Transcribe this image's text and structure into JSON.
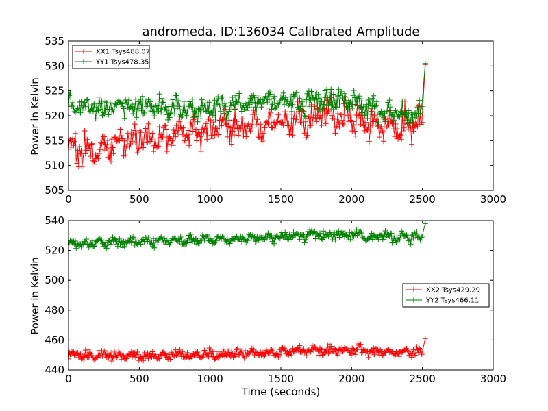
{
  "chart_data": [
    {
      "type": "line",
      "title": "andromeda, ID:136034 Calibrated Amplitude",
      "xlabel": "",
      "ylabel": "Power in Kelvin",
      "xlim": [
        0,
        3000
      ],
      "ylim": [
        505,
        535
      ],
      "xticks": [
        "0",
        "500",
        "1000",
        "1500",
        "2000",
        "2500",
        "3000"
      ],
      "yticks": [
        "505",
        "510",
        "515",
        "520",
        "525",
        "530",
        "535"
      ],
      "legend_position": "top-left",
      "grid": false,
      "marker": "plus",
      "series": [
        {
          "name": "XX1 Tsys488.07",
          "color": "#ff0000",
          "trend": {
            "x": [
              0,
              100,
              200,
              300,
              400,
              500,
              600,
              700,
              800,
              900,
              1000,
              1100,
              1200,
              1300,
              1400,
              1500,
              1600,
              1700,
              1800,
              1900,
              2000,
              2100,
              2200,
              2300,
              2400,
              2500
            ],
            "y": [
              514,
              513,
              513.5,
              514,
              514.5,
              515,
              515.5,
              515.5,
              516,
              516.5,
              517,
              517.5,
              518,
              518,
              518.5,
              518.5,
              519,
              519.5,
              520,
              520,
              519.5,
              519,
              518.5,
              518,
              518,
              518
            ]
          },
          "spread": 2.5,
          "end_spike": [
            2520,
            530.3
          ]
        },
        {
          "name": "YY1 Tsys478.35",
          "color": "#008000",
          "trend": {
            "x": [
              0,
              100,
              200,
              300,
              400,
              500,
              600,
              700,
              800,
              900,
              1000,
              1100,
              1200,
              1300,
              1400,
              1500,
              1600,
              1700,
              1800,
              1900,
              2000,
              2100,
              2200,
              2300,
              2400,
              2500
            ],
            "y": [
              522.5,
              522,
              521.5,
              521.5,
              522,
              522,
              522,
              521.5,
              521.5,
              521,
              521.5,
              522,
              522,
              522.5,
              523,
              523,
              523,
              523,
              523,
              523.5,
              523,
              522,
              521,
              520.5,
              520.5,
              521
            ]
          },
          "spread": 1.8,
          "end_spike": [
            2520,
            530.5
          ]
        }
      ]
    },
    {
      "type": "line",
      "title": "",
      "xlabel": "Time (seconds)",
      "ylabel": "Power in Kelvin",
      "xlim": [
        0,
        3000
      ],
      "ylim": [
        440,
        540
      ],
      "xticks": [
        "0",
        "500",
        "1000",
        "1500",
        "2000",
        "2500",
        "3000"
      ],
      "yticks": [
        "440",
        "460",
        "480",
        "500",
        "520",
        "540"
      ],
      "legend_position": "center-right",
      "grid": false,
      "marker": "plus",
      "series": [
        {
          "name": "XX2 Tsys429.29",
          "color": "#ff0000",
          "trend": {
            "x": [
              0,
              250,
              500,
              750,
              1000,
              1250,
              1500,
              1750,
              2000,
              2250,
              2500
            ],
            "y": [
              450,
              449.5,
              449.5,
              450,
              450.5,
              451,
              452,
              453.5,
              453,
              452,
              452
            ]
          },
          "spread": 2.5,
          "end_spike": [
            2520,
            461
          ]
        },
        {
          "name": "YY2 Tsys466.11",
          "color": "#008000",
          "trend": {
            "x": [
              0,
              250,
              500,
              750,
              1000,
              1250,
              1500,
              1750,
              2000,
              2250,
              2500
            ],
            "y": [
              525,
              525,
              526,
              526.5,
              527,
              528,
              529,
              530.5,
              530.5,
              529,
              529
            ]
          },
          "spread": 2.5,
          "end_spike": [
            2520,
            538
          ]
        }
      ]
    }
  ]
}
